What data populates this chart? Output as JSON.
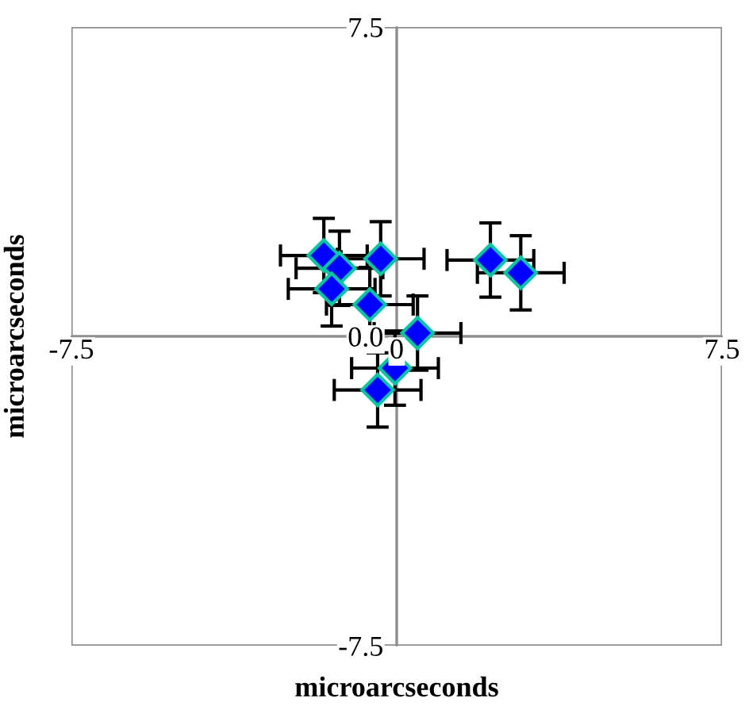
{
  "chart_data": {
    "type": "scatter",
    "xlabel": "microarcseconds",
    "ylabel": "microarcseconds",
    "x": [
      -1.68,
      -1.32,
      -0.37,
      -1.5,
      -0.62,
      0.48,
      -0.04,
      -0.44,
      2.16,
      2.86
    ],
    "series": [
      {
        "color": "#0000ff",
        "values": [
          1.96,
          1.65,
          1.88,
          1.15,
          0.77,
          0.08,
          -0.77,
          -1.3,
          1.85,
          1.54
        ],
        "errors": [
          0.9,
          0.9,
          0.9,
          0.9,
          0.9,
          0.9,
          0.9,
          0.9,
          0.9,
          0.9
        ],
        "xerrors": [
          1.0,
          1.0,
          1.0,
          1.0,
          1.0,
          1.0,
          1.0,
          1.0,
          1.0,
          1.0
        ]
      }
    ],
    "marker": "diamond",
    "grid": true,
    "xlim": [
      -7.5,
      7.5
    ],
    "ylim": [
      -7.5,
      7.5
    ],
    "xticks": [
      -7.5,
      {
        "value": 0,
        "label": "0"
      },
      7.5
    ],
    "yticks": [
      -7.5,
      {
        "value": 0,
        "label": "0.0"
      },
      7.5
    ]
  }
}
